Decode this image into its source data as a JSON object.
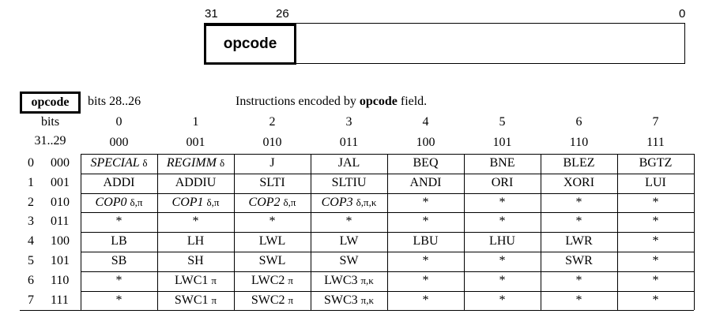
{
  "diagram": {
    "bit_high": "31",
    "bit_mid": "26",
    "bit_low": "0",
    "field_label": "opcode"
  },
  "table": {
    "corner_label": "opcode",
    "bits_range": "bits 28..26",
    "caption_prefix": "Instructions encoded by ",
    "caption_bold": "opcode",
    "caption_suffix": " field.",
    "row_header_line1": "bits",
    "row_header_line2": "31..29",
    "columns": [
      {
        "num": "0",
        "bin": "000"
      },
      {
        "num": "1",
        "bin": "001"
      },
      {
        "num": "2",
        "bin": "010"
      },
      {
        "num": "3",
        "bin": "011"
      },
      {
        "num": "4",
        "bin": "100"
      },
      {
        "num": "5",
        "bin": "101"
      },
      {
        "num": "6",
        "bin": "110"
      },
      {
        "num": "7",
        "bin": "111"
      }
    ],
    "rows": [
      {
        "dec": "0",
        "bin": "000",
        "cells": [
          {
            "text": "SPECIAL",
            "sym": "δ",
            "italic": true
          },
          {
            "text": "REGIMM",
            "sym": "δ",
            "italic": true
          },
          {
            "text": "J",
            "sym": ""
          },
          {
            "text": "JAL",
            "sym": ""
          },
          {
            "text": "BEQ",
            "sym": ""
          },
          {
            "text": "BNE",
            "sym": ""
          },
          {
            "text": "BLEZ",
            "sym": ""
          },
          {
            "text": "BGTZ",
            "sym": ""
          }
        ]
      },
      {
        "dec": "1",
        "bin": "001",
        "cells": [
          {
            "text": "ADDI",
            "sym": ""
          },
          {
            "text": "ADDIU",
            "sym": ""
          },
          {
            "text": "SLTI",
            "sym": ""
          },
          {
            "text": "SLTIU",
            "sym": ""
          },
          {
            "text": "ANDI",
            "sym": ""
          },
          {
            "text": "ORI",
            "sym": ""
          },
          {
            "text": "XORI",
            "sym": ""
          },
          {
            "text": "LUI",
            "sym": ""
          }
        ]
      },
      {
        "dec": "2",
        "bin": "010",
        "cells": [
          {
            "text": "COP0",
            "sym": "δ,π",
            "italic": true
          },
          {
            "text": "COP1",
            "sym": "δ,π",
            "italic": true
          },
          {
            "text": "COP2",
            "sym": "δ,π",
            "italic": true
          },
          {
            "text": "COP3",
            "sym": "δ,π,κ",
            "italic": true
          },
          {
            "text": "*",
            "sym": ""
          },
          {
            "text": "*",
            "sym": ""
          },
          {
            "text": "*",
            "sym": ""
          },
          {
            "text": "*",
            "sym": ""
          }
        ]
      },
      {
        "dec": "3",
        "bin": "011",
        "cells": [
          {
            "text": "*",
            "sym": ""
          },
          {
            "text": "*",
            "sym": ""
          },
          {
            "text": "*",
            "sym": ""
          },
          {
            "text": "*",
            "sym": ""
          },
          {
            "text": "*",
            "sym": ""
          },
          {
            "text": "*",
            "sym": ""
          },
          {
            "text": "*",
            "sym": ""
          },
          {
            "text": "*",
            "sym": ""
          }
        ]
      },
      {
        "dec": "4",
        "bin": "100",
        "cells": [
          {
            "text": "LB",
            "sym": ""
          },
          {
            "text": "LH",
            "sym": ""
          },
          {
            "text": "LWL",
            "sym": ""
          },
          {
            "text": "LW",
            "sym": ""
          },
          {
            "text": "LBU",
            "sym": ""
          },
          {
            "text": "LHU",
            "sym": ""
          },
          {
            "text": "LWR",
            "sym": ""
          },
          {
            "text": "*",
            "sym": ""
          }
        ]
      },
      {
        "dec": "5",
        "bin": "101",
        "cells": [
          {
            "text": "SB",
            "sym": ""
          },
          {
            "text": "SH",
            "sym": ""
          },
          {
            "text": "SWL",
            "sym": ""
          },
          {
            "text": "SW",
            "sym": ""
          },
          {
            "text": "*",
            "sym": ""
          },
          {
            "text": "*",
            "sym": ""
          },
          {
            "text": "SWR",
            "sym": ""
          },
          {
            "text": "*",
            "sym": ""
          }
        ]
      },
      {
        "dec": "6",
        "bin": "110",
        "cells": [
          {
            "text": "*",
            "sym": ""
          },
          {
            "text": "LWC1",
            "sym": "π"
          },
          {
            "text": "LWC2",
            "sym": "π"
          },
          {
            "text": "LWC3",
            "sym": "π,κ"
          },
          {
            "text": "*",
            "sym": ""
          },
          {
            "text": "*",
            "sym": ""
          },
          {
            "text": "*",
            "sym": ""
          },
          {
            "text": "*",
            "sym": ""
          }
        ]
      },
      {
        "dec": "7",
        "bin": "111",
        "cells": [
          {
            "text": "*",
            "sym": ""
          },
          {
            "text": "SWC1",
            "sym": "π"
          },
          {
            "text": "SWC2",
            "sym": "π"
          },
          {
            "text": "SWC3",
            "sym": "π,κ"
          },
          {
            "text": "*",
            "sym": ""
          },
          {
            "text": "*",
            "sym": ""
          },
          {
            "text": "*",
            "sym": ""
          },
          {
            "text": "*",
            "sym": ""
          }
        ]
      }
    ]
  }
}
